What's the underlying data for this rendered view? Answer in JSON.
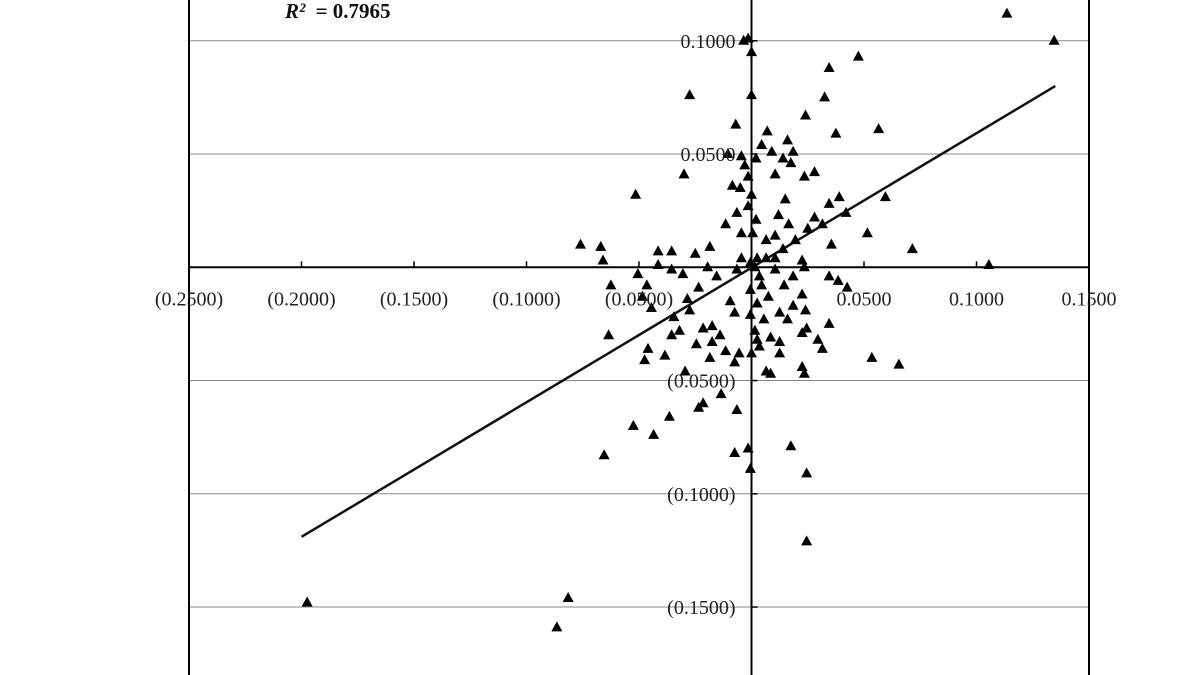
{
  "chart_data": {
    "type": "scatter",
    "r2_label": "R²",
    "r2_value": "= 0.7965",
    "x_tick_labels": [
      "(0.2500)",
      "(0.2000)",
      "(0.1500)",
      "(0.1000)",
      "(0.0500)",
      "0.0500",
      "0.1000",
      "0.1500"
    ],
    "x_ticks": [
      -0.25,
      -0.2,
      -0.15,
      -0.1,
      -0.05,
      0.05,
      0.1,
      0.15
    ],
    "y_tick_labels": [
      "0.1000",
      "0.0500",
      "(0.0500)",
      "(0.1000)",
      "(0.1500)"
    ],
    "y_ticks": [
      0.1,
      0.05,
      -0.05,
      -0.1,
      -0.15
    ],
    "xlim": [
      -0.25,
      0.15
    ],
    "ylim": [
      -0.18,
      0.118
    ],
    "grid": true,
    "marker": "triangle",
    "colors": {
      "points": "#000000",
      "grid": "#888888",
      "axis": "#000000",
      "trend": "#111111"
    },
    "trendline": {
      "x": [
        -0.2,
        0.135
      ],
      "y": [
        -0.119,
        0.08
      ]
    },
    "points": [
      [
        0.1135,
        0.112
      ],
      [
        0.1345,
        0.1
      ],
      [
        -0.0035,
        0.1
      ],
      [
        -0.0015,
        0.101
      ],
      [
        0.0,
        0.095
      ],
      [
        0.0475,
        0.093
      ],
      [
        0.0345,
        0.088
      ],
      [
        -0.0275,
        0.076
      ],
      [
        0.0,
        0.076
      ],
      [
        0.0325,
        0.075
      ],
      [
        0.024,
        0.067
      ],
      [
        -0.007,
        0.063
      ],
      [
        0.007,
        0.06
      ],
      [
        0.0375,
        0.059
      ],
      [
        0.0565,
        0.061
      ],
      [
        0.016,
        0.056
      ],
      [
        0.0045,
        0.054
      ],
      [
        0.009,
        0.051
      ],
      [
        0.0185,
        0.051
      ],
      [
        -0.0105,
        0.05
      ],
      [
        -0.0045,
        0.049
      ],
      [
        0.002,
        0.048
      ],
      [
        0.014,
        0.048
      ],
      [
        -0.003,
        0.045
      ],
      [
        0.0175,
        0.046
      ],
      [
        -0.0015,
        0.04
      ],
      [
        0.0105,
        0.041
      ],
      [
        0.0235,
        0.04
      ],
      [
        0.028,
        0.042
      ],
      [
        -0.03,
        0.041
      ],
      [
        -0.0085,
        0.036
      ],
      [
        -0.005,
        0.035
      ],
      [
        0.0,
        0.032
      ],
      [
        -0.0515,
        0.032
      ],
      [
        0.015,
        0.03
      ],
      [
        0.039,
        0.031
      ],
      [
        0.0595,
        0.031
      ],
      [
        0.0345,
        0.028
      ],
      [
        -0.0015,
        0.027
      ],
      [
        0.042,
        0.024
      ],
      [
        -0.0065,
        0.024
      ],
      [
        0.012,
        0.023
      ],
      [
        0.028,
        0.022
      ],
      [
        0.0315,
        0.019
      ],
      [
        0.002,
        0.021
      ],
      [
        -0.0115,
        0.019
      ],
      [
        0.0165,
        0.019
      ],
      [
        0.025,
        0.017
      ],
      [
        -0.0045,
        0.015
      ],
      [
        0.0005,
        0.015
      ],
      [
        0.0105,
        0.014
      ],
      [
        0.0065,
        0.012
      ],
      [
        0.0195,
        0.012
      ],
      [
        0.0355,
        0.01
      ],
      [
        0.0515,
        0.015
      ],
      [
        -0.076,
        0.01
      ],
      [
        -0.067,
        0.009
      ],
      [
        -0.0185,
        0.009
      ],
      [
        -0.0415,
        0.007
      ],
      [
        -0.0355,
        0.007
      ],
      [
        -0.025,
        0.006
      ],
      [
        0.014,
        0.008
      ],
      [
        0.0715,
        0.008
      ],
      [
        -0.066,
        0.003
      ],
      [
        -0.0045,
        0.004
      ],
      [
        0.0025,
        0.004
      ],
      [
        0.0065,
        0.004
      ],
      [
        0.0105,
        0.004
      ],
      [
        -0.0005,
        0.002
      ],
      [
        0.0225,
        0.003
      ],
      [
        -0.0415,
        0.001
      ],
      [
        -0.0195,
        0.0
      ],
      [
        -0.0355,
        -0.001
      ],
      [
        -0.0065,
        -0.001
      ],
      [
        0.0015,
        0.0
      ],
      [
        0.0105,
        -0.001
      ],
      [
        0.0235,
        0.0
      ],
      [
        0.1055,
        0.001
      ],
      [
        -0.0505,
        -0.003
      ],
      [
        -0.0305,
        -0.003
      ],
      [
        -0.0155,
        -0.004
      ],
      [
        0.0035,
        -0.004
      ],
      [
        0.0185,
        -0.004
      ],
      [
        0.0345,
        -0.004
      ],
      [
        0.0385,
        -0.006
      ],
      [
        -0.0625,
        -0.008
      ],
      [
        -0.0465,
        -0.008
      ],
      [
        -0.0235,
        -0.009
      ],
      [
        0.0045,
        -0.008
      ],
      [
        0.0145,
        -0.008
      ],
      [
        0.0425,
        -0.009
      ],
      [
        -0.0005,
        -0.01
      ],
      [
        -0.0485,
        -0.013
      ],
      [
        -0.0285,
        -0.014
      ],
      [
        0.0075,
        -0.013
      ],
      [
        0.0225,
        -0.012
      ],
      [
        -0.0095,
        -0.015
      ],
      [
        0.0025,
        -0.016
      ],
      [
        0.0185,
        -0.017
      ],
      [
        -0.0445,
        -0.018
      ],
      [
        -0.0275,
        -0.019
      ],
      [
        -0.0075,
        -0.02
      ],
      [
        -0.0005,
        -0.021
      ],
      [
        0.0125,
        -0.02
      ],
      [
        0.024,
        -0.019
      ],
      [
        -0.0345,
        -0.022
      ],
      [
        0.0055,
        -0.023
      ],
      [
        0.016,
        -0.023
      ],
      [
        0.0345,
        -0.025
      ],
      [
        -0.0175,
        -0.026
      ],
      [
        0.0245,
        -0.027
      ],
      [
        -0.032,
        -0.028
      ],
      [
        -0.0215,
        -0.027
      ],
      [
        0.0015,
        -0.028
      ],
      [
        0.0225,
        -0.029
      ],
      [
        -0.0635,
        -0.03
      ],
      [
        -0.0355,
        -0.03
      ],
      [
        -0.014,
        -0.03
      ],
      [
        0.0085,
        -0.031
      ],
      [
        0.0295,
        -0.032
      ],
      [
        -0.0175,
        -0.033
      ],
      [
        0.0025,
        -0.032
      ],
      [
        0.0125,
        -0.033
      ],
      [
        -0.0245,
        -0.034
      ],
      [
        0.0035,
        -0.035
      ],
      [
        -0.046,
        -0.036
      ],
      [
        -0.0115,
        -0.037
      ],
      [
        -0.0055,
        -0.038
      ],
      [
        0.0,
        -0.038
      ],
      [
        0.0125,
        -0.038
      ],
      [
        -0.0385,
        -0.039
      ],
      [
        -0.0185,
        -0.04
      ],
      [
        0.0315,
        -0.036
      ],
      [
        -0.0475,
        -0.041
      ],
      [
        -0.0075,
        -0.042
      ],
      [
        0.0225,
        -0.044
      ],
      [
        -0.0295,
        -0.046
      ],
      [
        0.0535,
        -0.04
      ],
      [
        0.0655,
        -0.043
      ],
      [
        0.0065,
        -0.046
      ],
      [
        0.0085,
        -0.047
      ],
      [
        0.0235,
        -0.047
      ],
      [
        -0.0135,
        -0.056
      ],
      [
        -0.0215,
        -0.06
      ],
      [
        -0.0235,
        -0.062
      ],
      [
        -0.0065,
        -0.063
      ],
      [
        -0.0365,
        -0.066
      ],
      [
        -0.0525,
        -0.07
      ],
      [
        -0.0435,
        -0.074
      ],
      [
        0.0175,
        -0.079
      ],
      [
        -0.0015,
        -0.08
      ],
      [
        -0.0655,
        -0.083
      ],
      [
        -0.0075,
        -0.082
      ],
      [
        0.0245,
        -0.091
      ],
      [
        -0.0005,
        -0.089
      ],
      [
        0.0245,
        -0.121
      ],
      [
        -0.1975,
        -0.148
      ],
      [
        -0.0815,
        -0.146
      ],
      [
        -0.0865,
        -0.159
      ]
    ]
  }
}
